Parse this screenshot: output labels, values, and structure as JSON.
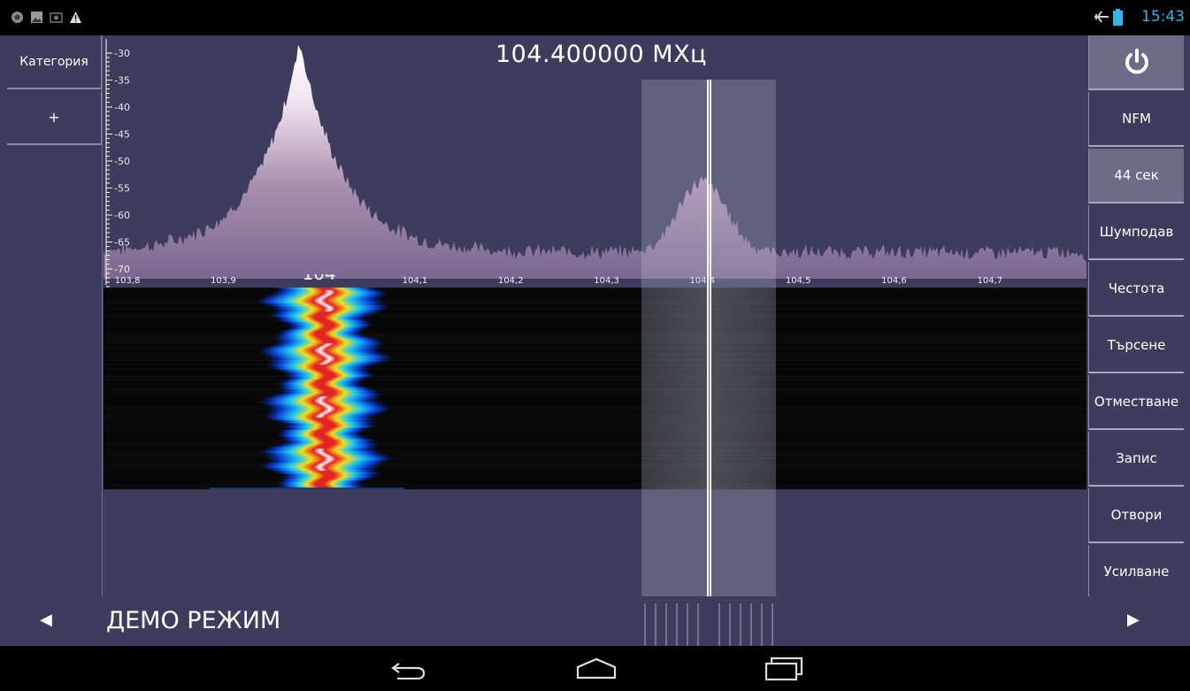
{
  "status_bar": {
    "left_icons": [
      "target-icon",
      "image-icon",
      "photo-icon",
      "warning-icon"
    ],
    "right_icons": [
      "airplane-icon",
      "battery-icon"
    ],
    "clock": "15:43",
    "clock_color": "#33b5e5"
  },
  "frequency_display": "104.400000 МХц",
  "left_panel": {
    "category_label": "Категория",
    "add_label": "+"
  },
  "right_panel": {
    "power_icon": "power-icon",
    "buttons": [
      "NFM",
      "44 сек",
      "Шумподав",
      "Честота",
      "Търсене",
      "Отместване",
      "Запис",
      "Отвори",
      "Усилване"
    ],
    "active_index": 1
  },
  "spectrum": {
    "db_ticks": [
      "-30",
      "-35",
      "-40",
      "-45",
      "-50",
      "-55",
      "-60",
      "-65",
      "-70"
    ],
    "freq_ticks": [
      "103,8",
      "103,9",
      "104",
      "104,1",
      "104,2",
      "104,3",
      "104,4",
      "104,5",
      "104,6",
      "104,7"
    ],
    "highlight_tick": "104",
    "center_frequency_mhz": 104.4
  },
  "bottom_bar": {
    "mode_label": "ДЕМО РЕЖИМ",
    "left_arrow": "◀",
    "right_arrow": "▶"
  },
  "nav_bar": {
    "icons": [
      "back-icon",
      "home-icon",
      "recents-icon"
    ]
  },
  "colors": {
    "background": "#3d3c5d",
    "accent": "#33b5e5",
    "selection_overlay": "rgba(190,190,215,0.35)"
  }
}
